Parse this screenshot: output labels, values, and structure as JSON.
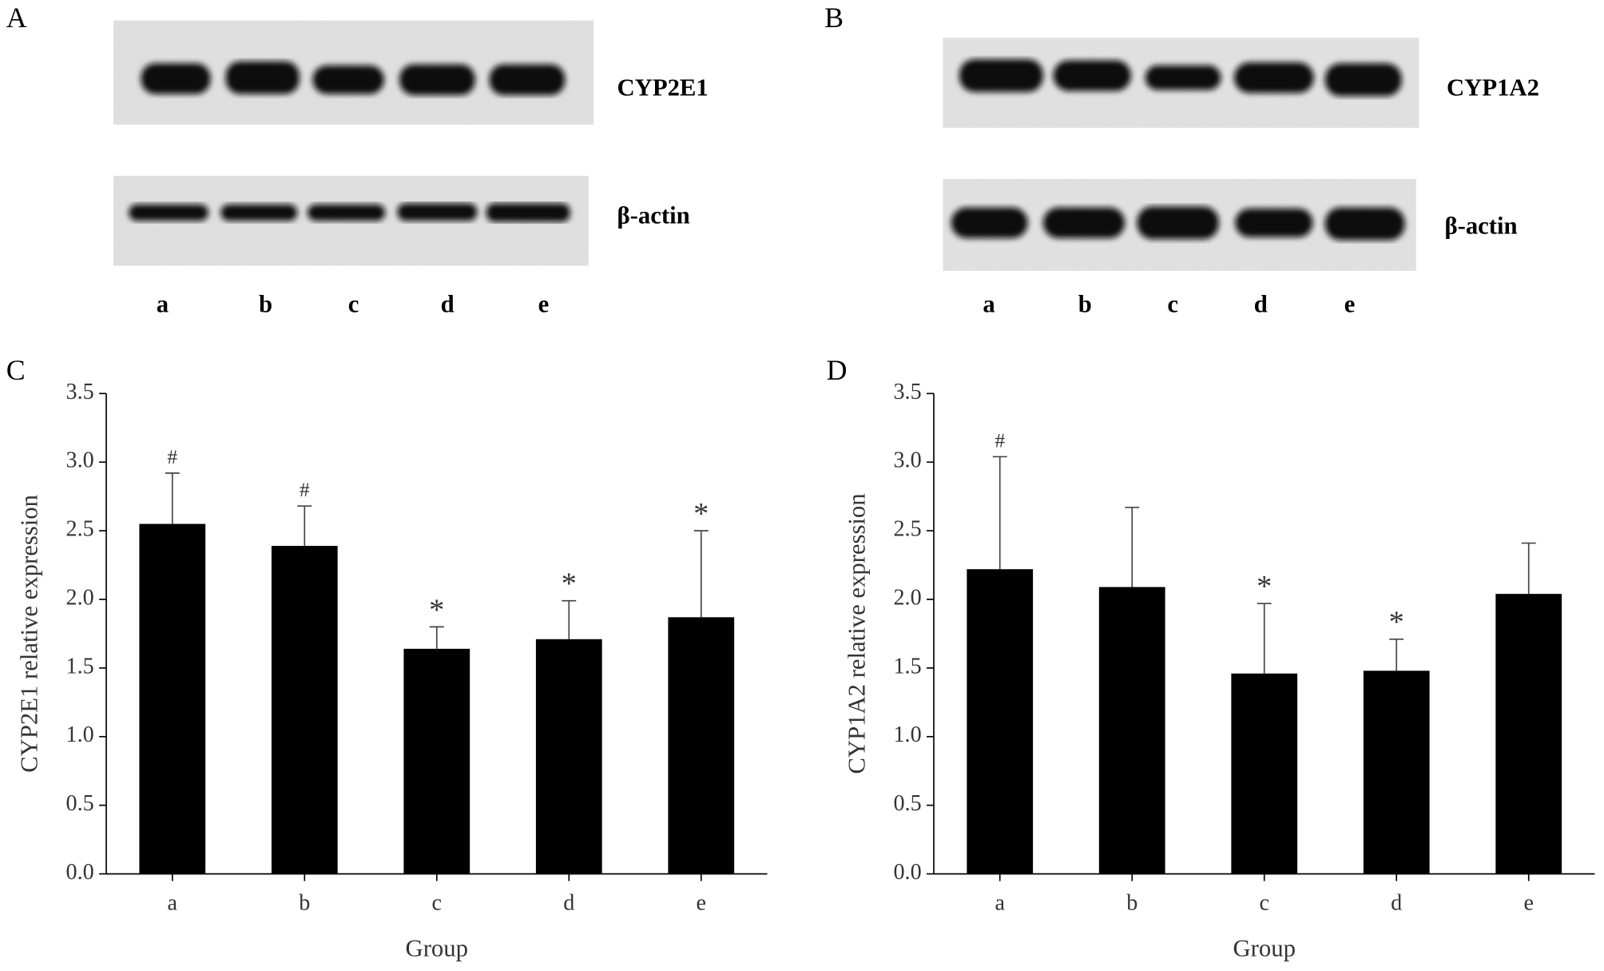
{
  "blots": [
    {
      "panel_label": "A",
      "protein": "CYP2E1",
      "control": "β-actin",
      "lanes": [
        "a",
        "b",
        "c",
        "d",
        "e"
      ]
    },
    {
      "panel_label": "B",
      "protein": "CYP1A2",
      "control": "β-actin",
      "lanes": [
        "a",
        "b",
        "c",
        "d",
        "e"
      ]
    }
  ],
  "chart_data": [
    {
      "type": "bar",
      "panel_label": "C",
      "x_label": "Group",
      "y_label": "CYP2E1 relative expression",
      "categories": [
        "a",
        "b",
        "c",
        "d",
        "e"
      ],
      "values": [
        2.55,
        2.39,
        1.64,
        1.71,
        1.87
      ],
      "errors": [
        0.37,
        0.29,
        0.16,
        0.28,
        0.63
      ],
      "annotations": [
        "#",
        "#",
        "*",
        "*",
        "*"
      ],
      "color": "#000000",
      "ylim": [
        0,
        3.5
      ],
      "yticks": [
        {
          "value": 0,
          "label": "0.0"
        },
        0.5,
        {
          "value": 1,
          "label": "1.0"
        },
        1.5,
        {
          "value": 2,
          "label": "2.0"
        },
        2.5,
        {
          "value": 3,
          "label": "3.0"
        },
        3.5
      ]
    },
    {
      "type": "bar",
      "panel_label": "D",
      "x_label": "Group",
      "y_label": "CYP1A2 relative expression",
      "categories": [
        "a",
        "b",
        "c",
        "d",
        "e"
      ],
      "values": [
        2.22,
        2.09,
        1.46,
        1.48,
        2.04
      ],
      "errors": [
        0.82,
        0.58,
        0.51,
        0.23,
        0.37
      ],
      "annotations": [
        "#",
        null,
        "*",
        "*",
        null
      ],
      "color": "#000000",
      "ylim": [
        0,
        3.5
      ],
      "yticks": [
        {
          "value": 0,
          "label": "0.0"
        },
        0.5,
        {
          "value": 1,
          "label": "1.0"
        },
        1.5,
        {
          "value": 2,
          "label": "2.0"
        },
        2.5,
        {
          "value": 3,
          "label": "3.0"
        },
        3.5
      ]
    }
  ]
}
